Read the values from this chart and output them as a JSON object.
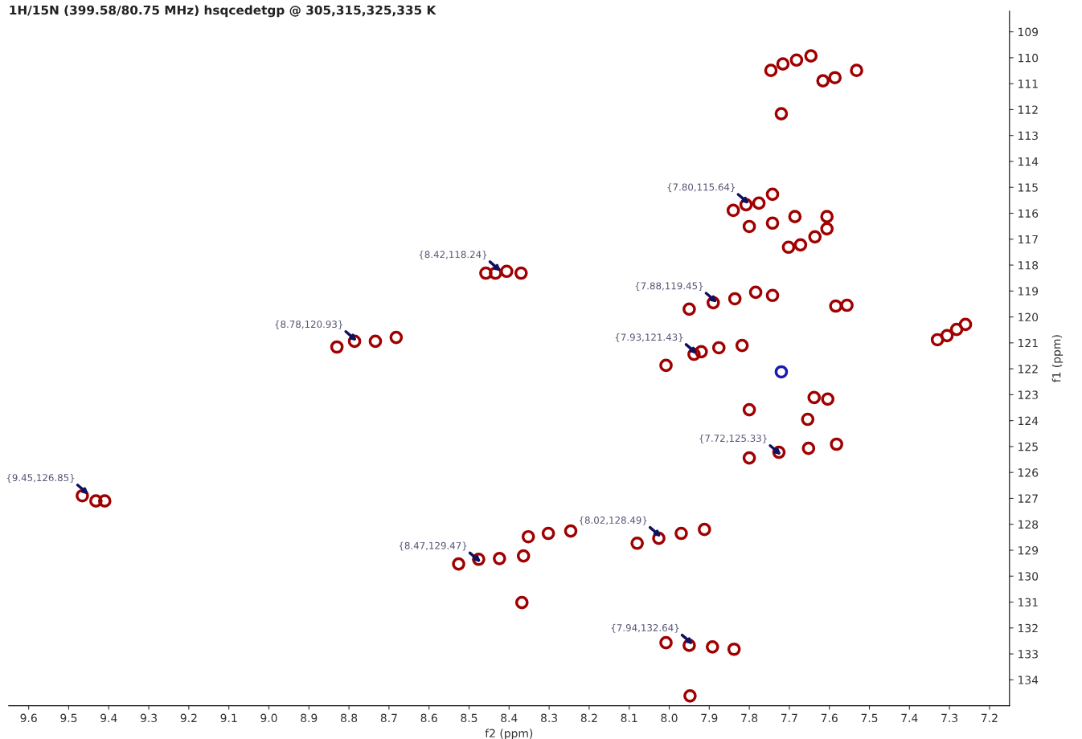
{
  "chart_data": {
    "type": "scatter",
    "title": "1H/15N (399.58/80.75 MHz) hsqcedetgp @ 305,315,325,335 K",
    "xlabel": "f2 (ppm)",
    "ylabel": "f1 (ppm)",
    "xlim": [
      9.65,
      7.15
    ],
    "ylim": [
      135.0,
      108.2
    ],
    "xticks": [
      9.6,
      9.5,
      9.4,
      9.3,
      9.2,
      9.1,
      {
        "value": 9.0,
        "label": "9.0"
      },
      8.9,
      8.8,
      8.7,
      8.6,
      8.5,
      8.4,
      8.3,
      8.2,
      8.1,
      {
        "value": 8.0,
        "label": "8.0"
      },
      7.9,
      7.8,
      7.7,
      7.6,
      7.5,
      7.4,
      7.3,
      7.2
    ],
    "yticks": [
      109,
      110,
      111,
      112,
      113,
      114,
      115,
      116,
      117,
      118,
      119,
      120,
      121,
      122,
      123,
      124,
      125,
      126,
      127,
      128,
      129,
      130,
      131,
      132,
      133,
      134
    ],
    "grid": false,
    "marker": "circle",
    "series": [
      {
        "color": "#a00000",
        "x": [
          7.746,
          7.716,
          7.682,
          7.646,
          7.616,
          7.586,
          7.532,
          7.72,
          7.84,
          7.808,
          7.776,
          7.742,
          7.8,
          7.742,
          7.686,
          7.606,
          7.606,
          7.702,
          7.672,
          7.636,
          8.458,
          8.434,
          8.406,
          8.37,
          7.95,
          7.89,
          7.836,
          7.784,
          7.742,
          7.584,
          7.556,
          8.83,
          8.786,
          8.734,
          8.682,
          8.008,
          7.938,
          7.92,
          7.876,
          7.818,
          7.33,
          7.306,
          7.282,
          7.26,
          7.638,
          7.604,
          7.654,
          7.8,
          7.8,
          7.726,
          7.652,
          7.582,
          9.466,
          9.432,
          9.41,
          8.526,
          8.476,
          8.424,
          8.364,
          8.352,
          8.302,
          8.246,
          8.368,
          8.08,
          8.026,
          7.97,
          7.912,
          8.008,
          7.95,
          7.892,
          7.838,
          7.948
        ],
        "values": [
          110.49,
          110.24,
          110.09,
          109.93,
          110.89,
          110.77,
          110.49,
          112.16,
          115.89,
          115.67,
          115.61,
          115.27,
          116.51,
          116.38,
          116.13,
          116.13,
          116.6,
          117.31,
          117.22,
          116.91,
          118.31,
          118.31,
          118.24,
          118.31,
          119.7,
          119.45,
          119.3,
          119.05,
          119.17,
          119.58,
          119.55,
          121.16,
          120.94,
          120.94,
          120.79,
          121.87,
          121.44,
          121.34,
          121.19,
          121.1,
          120.88,
          120.72,
          120.48,
          120.29,
          123.11,
          123.17,
          123.95,
          123.58,
          125.44,
          125.22,
          125.07,
          124.91,
          126.9,
          127.1,
          127.1,
          129.53,
          129.35,
          129.32,
          129.22,
          128.48,
          128.35,
          128.26,
          131.02,
          128.73,
          128.54,
          128.35,
          128.2,
          132.57,
          132.67,
          132.73,
          132.82,
          134.62
        ]
      },
      {
        "color": "#1a1ab0",
        "x": [
          7.72
        ],
        "values": [
          122.12
        ]
      }
    ],
    "annotations": [
      {
        "text": "{7.80,115.64}",
        "x": 7.8,
        "y": 115.64
      },
      {
        "text": "{8.42,118.24}",
        "x": 8.42,
        "y": 118.24
      },
      {
        "text": "{7.88,119.45}",
        "x": 7.88,
        "y": 119.45
      },
      {
        "text": "{8.78,120.93}",
        "x": 8.78,
        "y": 120.93
      },
      {
        "text": "{7.93,121.43}",
        "x": 7.93,
        "y": 121.43
      },
      {
        "text": "{7.72,125.33}",
        "x": 7.72,
        "y": 125.33
      },
      {
        "text": "{9.45,126.85}",
        "x": 9.45,
        "y": 126.85
      },
      {
        "text": "{8.02,128.49}",
        "x": 8.02,
        "y": 128.49
      },
      {
        "text": "{8.47,129.47}",
        "x": 8.47,
        "y": 129.47
      },
      {
        "text": "{7.94,132.64}",
        "x": 7.94,
        "y": 132.64
      }
    ]
  }
}
